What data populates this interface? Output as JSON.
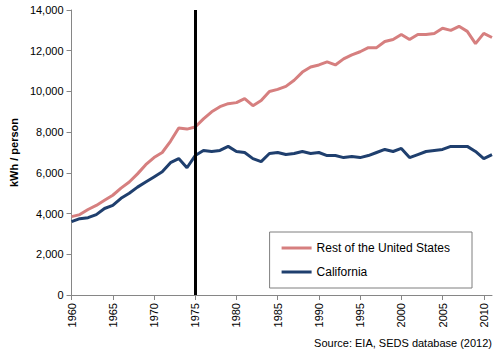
{
  "chart_data": {
    "type": "line",
    "y_label": "kWh / person",
    "annotation": "Source: EIA, SEDS database (2012)",
    "vertical_line": 1975,
    "x": [
      1960,
      1961,
      1962,
      1963,
      1964,
      1965,
      1966,
      1967,
      1968,
      1969,
      1970,
      1971,
      1972,
      1973,
      1974,
      1975,
      1976,
      1977,
      1978,
      1979,
      1980,
      1981,
      1982,
      1983,
      1984,
      1985,
      1986,
      1987,
      1988,
      1989,
      1990,
      1991,
      1992,
      1993,
      1994,
      1995,
      1996,
      1997,
      1998,
      1999,
      2000,
      2001,
      2002,
      2003,
      2004,
      2005,
      2006,
      2007,
      2008,
      2009,
      2010,
      2011
    ],
    "series": [
      {
        "name": "Rest of the United States",
        "color": "#d67f7f",
        "values": [
          3850,
          3950,
          4200,
          4400,
          4650,
          4900,
          5250,
          5550,
          5950,
          6400,
          6750,
          7000,
          7550,
          8200,
          8150,
          8250,
          8650,
          9000,
          9250,
          9400,
          9450,
          9650,
          9300,
          9550,
          10000,
          10100,
          10250,
          10550,
          10950,
          11200,
          11300,
          11450,
          11300,
          11600,
          11800,
          11950,
          12150,
          12150,
          12450,
          12550,
          12800,
          12550,
          12800,
          12800,
          12850,
          13100,
          13000,
          13200,
          12950,
          12350,
          12850,
          12650
        ]
      },
      {
        "name": "California",
        "color": "#1f3f6e",
        "values": [
          3600,
          3750,
          3800,
          3950,
          4250,
          4400,
          4750,
          5000,
          5300,
          5550,
          5800,
          6050,
          6500,
          6700,
          6250,
          6850,
          7100,
          7050,
          7100,
          7300,
          7050,
          7000,
          6700,
          6550,
          6950,
          7000,
          6900,
          6950,
          7050,
          6950,
          7000,
          6850,
          6850,
          6750,
          6800,
          6750,
          6850,
          7000,
          7150,
          7050,
          7200,
          6750,
          6900,
          7050,
          7100,
          7150,
          7300,
          7300,
          7300,
          7050,
          6700,
          6900
        ]
      }
    ],
    "xlim": [
      1960,
      2011
    ],
    "xticks": [
      1960,
      1965,
      1970,
      1975,
      1980,
      1985,
      1990,
      1995,
      2000,
      2005,
      2010
    ],
    "ylim": [
      0,
      14000
    ],
    "yticks": [
      0,
      {
        "value": 2000,
        "label": "2,000"
      },
      {
        "value": 4000,
        "label": "4,000"
      },
      {
        "value": 6000,
        "label": "6,000"
      },
      {
        "value": 8000,
        "label": "8,000"
      },
      {
        "value": 10000,
        "label": "10,000"
      },
      {
        "value": 12000,
        "label": "12,000"
      },
      {
        "value": 14000,
        "label": "14,000"
      }
    ],
    "grid": false,
    "legend": "lower right"
  }
}
